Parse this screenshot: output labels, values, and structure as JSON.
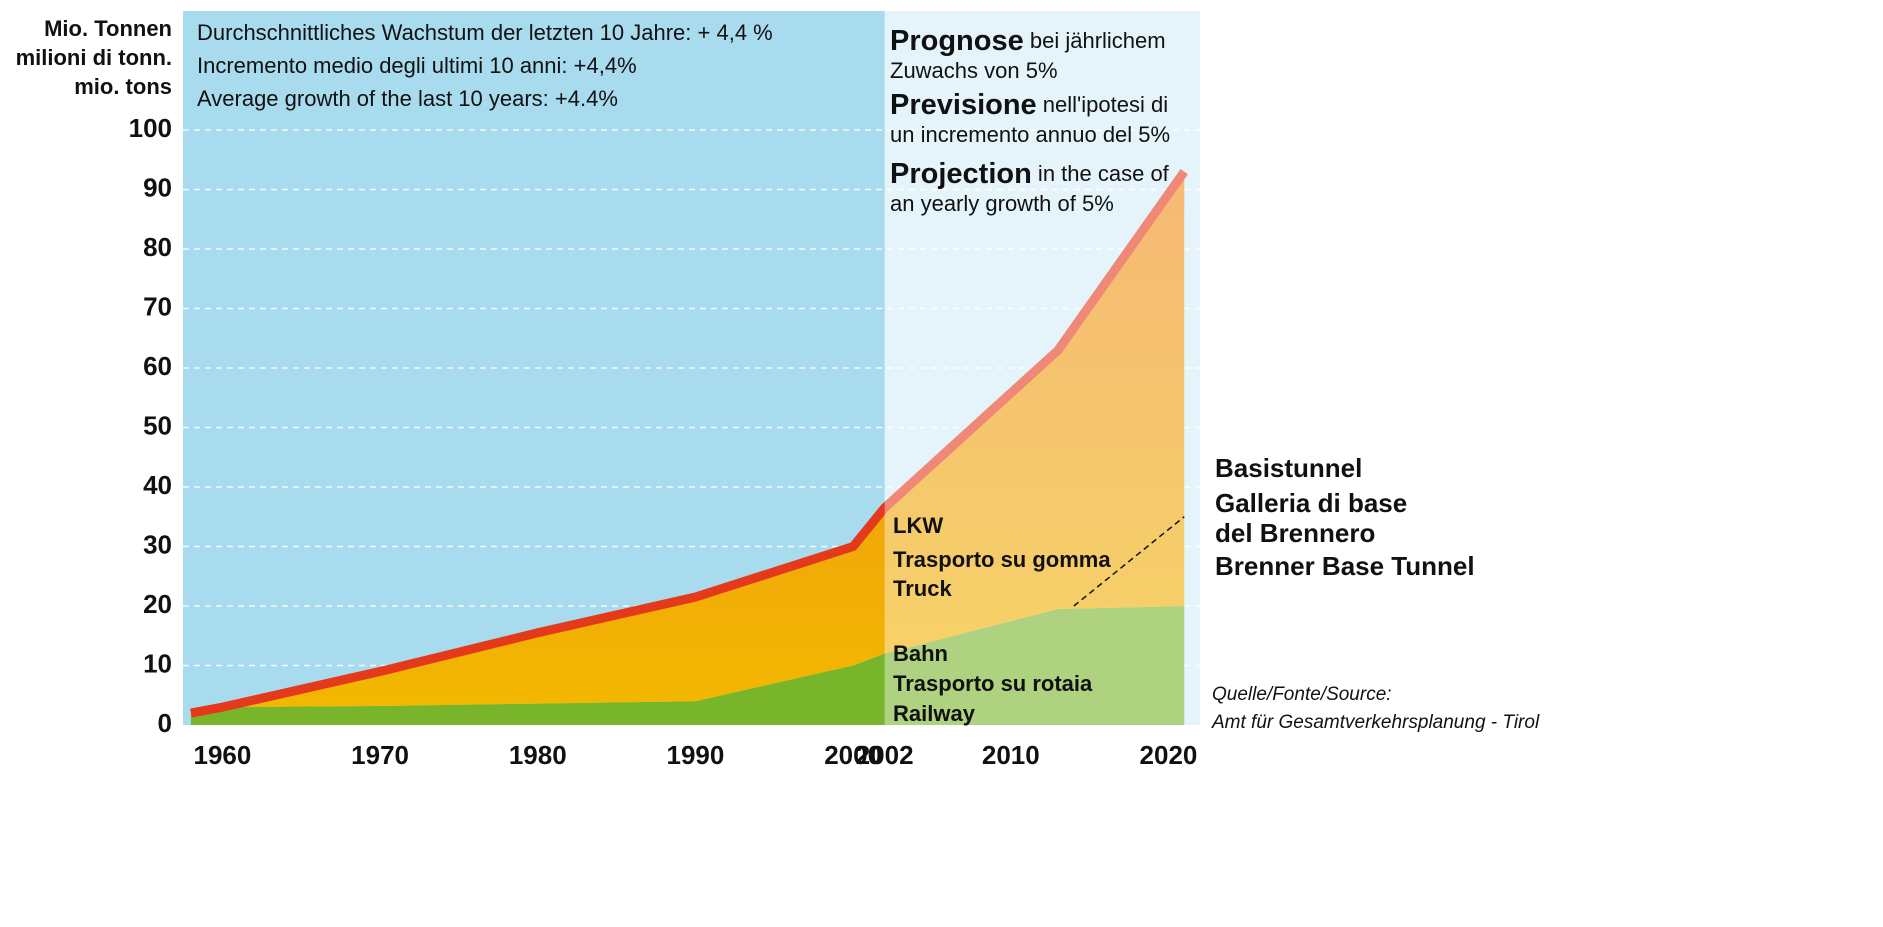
{
  "chart_data": {
    "type": "stacked_area",
    "y_label_lines": [
      "Mio. Tonnen",
      "milioni di tonn.",
      "mio. tons"
    ],
    "growth_note_lines": [
      "Durchschnittliches Wachstum der letzten 10 Jahre: + 4,4 %",
      "Incremento medio degli ultimi 10 anni: +4,4%",
      "Average growth of the last 10 years: +4.4%"
    ],
    "projection_note_lines": [
      {
        "bold": "Prognose",
        "text": " bei jährlichem"
      },
      {
        "bold": "",
        "text": "Zuwachs von 5%"
      },
      {
        "bold": "Previsione",
        "text": " nell'ipotesi di"
      },
      {
        "bold": "",
        "text": "un incremento annuo del 5%"
      },
      {
        "bold": "Projection",
        "text": " in the case of"
      },
      {
        "bold": "",
        "text": "an yearly growth of 5%"
      }
    ],
    "tunnel_label_lines": [
      "Basistunnel",
      "Galleria di base",
      "del Brennero",
      "Brenner Base Tunnel"
    ],
    "source_lines": [
      "Quelle/Fonte/Source:",
      "Amt für Gesamtverkehrsplanung - Tirol"
    ],
    "projection_start": 2002,
    "x": [
      1958,
      1960,
      1970,
      1980,
      1990,
      2000,
      2002,
      2013,
      2021
    ],
    "series": [
      {
        "label_lines": [
          "Bahn",
          "Trasporto su rotaia",
          "Railway"
        ],
        "color": "#78b52a",
        "values": [
          2,
          3,
          3.2,
          3.6,
          4,
          10,
          12,
          19.5,
          20
        ]
      },
      {
        "label_lines": [
          "LKW",
          "Trasporto su gomma",
          "Truck"
        ],
        "color": "#f2b800",
        "line_color": "#e5391c",
        "values": [
          0,
          0,
          5.8,
          11.9,
          17.5,
          20,
          24.5,
          43.5,
          73
        ]
      }
    ],
    "tunnel_line": {
      "x": [
        2014,
        2021
      ],
      "y": [
        20,
        35
      ]
    },
    "xlim": [
      1957.5,
      2022
    ],
    "xticks": [
      1960,
      1970,
      1980,
      1990,
      2000,
      2002,
      2010,
      2020
    ],
    "ylim": [
      0,
      120
    ],
    "yticks": [
      0,
      10,
      20,
      30,
      40,
      50,
      60,
      70,
      80,
      90,
      100
    ],
    "grid": true
  }
}
